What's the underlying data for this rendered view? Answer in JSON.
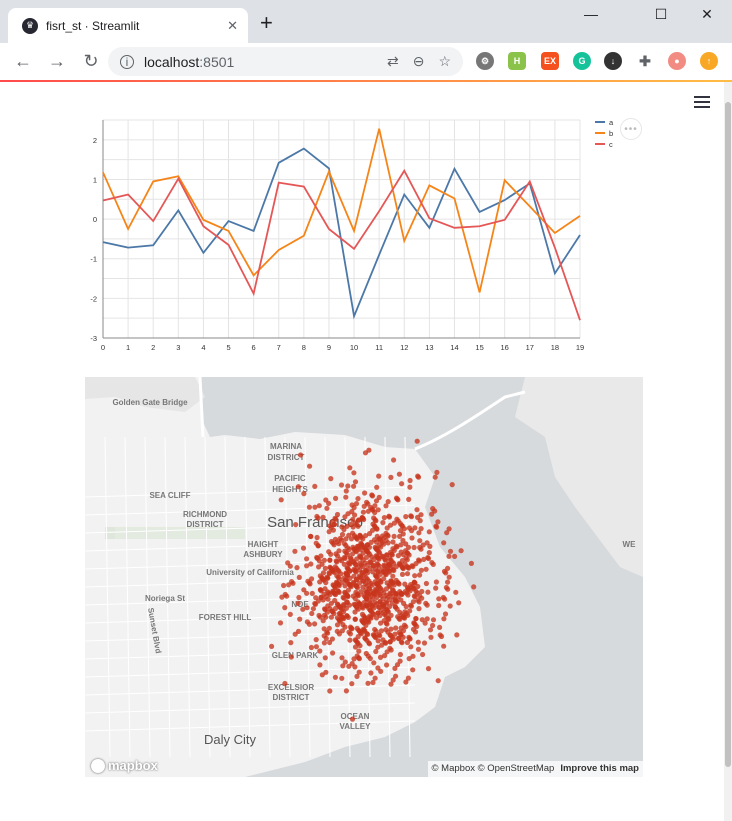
{
  "browser": {
    "tab_title": "fisrt_st · Streamlit",
    "new_tab": "+",
    "url_host": "localhost",
    "url_port": ":8501",
    "win_min": "—",
    "win_max": "☐",
    "win_close": "✕"
  },
  "chart_data": {
    "type": "line",
    "categories": [
      0,
      1,
      2,
      3,
      4,
      5,
      6,
      7,
      8,
      9,
      10,
      11,
      12,
      13,
      14,
      15,
      16,
      17,
      18,
      19
    ],
    "ylim": [
      -3,
      2.5
    ],
    "yticks": [
      -3,
      -2,
      -1,
      0,
      1,
      2
    ],
    "series": [
      {
        "name": "a",
        "color": "#4c78a8",
        "values": [
          -0.58,
          -0.72,
          -0.66,
          0.22,
          -0.85,
          -0.05,
          -0.3,
          1.42,
          1.78,
          1.28,
          -2.45,
          -0.9,
          0.62,
          -0.22,
          1.27,
          0.18,
          0.48,
          0.9,
          -1.37,
          -0.4
        ]
      },
      {
        "name": "b",
        "color": "#f58518",
        "values": [
          1.18,
          -0.25,
          0.95,
          1.08,
          -0.02,
          -0.3,
          -1.42,
          -0.78,
          -0.42,
          1.2,
          -0.3,
          2.28,
          -0.55,
          0.85,
          0.52,
          -1.85,
          0.98,
          0.32,
          -0.35,
          0.08
        ]
      },
      {
        "name": "c",
        "color": "#e45756",
        "values": [
          0.47,
          0.62,
          -0.05,
          1.02,
          -0.18,
          -0.65,
          -1.88,
          0.92,
          0.82,
          -0.25,
          -0.75,
          0.2,
          1.22,
          0.02,
          -0.22,
          -0.18,
          -0.02,
          0.95,
          -0.72,
          -2.55
        ]
      }
    ]
  },
  "map": {
    "labels": [
      "Golden Gate Bridge",
      "MARINA",
      "DISTRICT",
      "PACIFIC",
      "HEIGHTS",
      "SEA CLIFF",
      "RICHMOND",
      "DISTRICT",
      "San Francisco",
      "HAIGHT",
      "ASHBURY",
      "University of California",
      "Noriega St",
      "Sunset Blvd",
      "FOREST HILL",
      "NOE",
      "GLEN PARK",
      "EXCELSIOR",
      "DISTRICT",
      "OCEAN",
      "VALLEY",
      "Daly City",
      "WE"
    ],
    "attribution": "© Mapbox © OpenStreetMap",
    "improve": "Improve this map",
    "logo": "mapbox",
    "point_color": "#c8341c",
    "center_lat": 37.76,
    "center_lon": -122.4
  },
  "icons": {
    "more": "•••"
  }
}
